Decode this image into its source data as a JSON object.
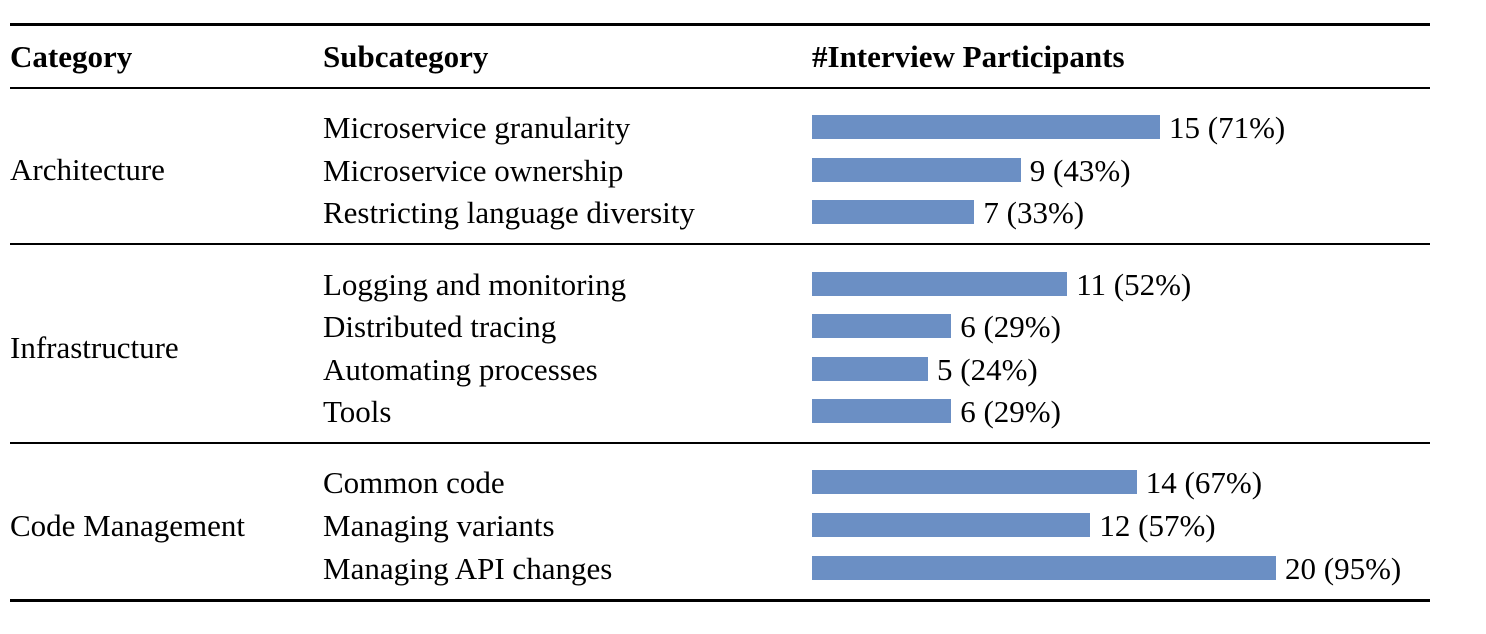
{
  "headers": {
    "category": "Category",
    "subcategory": "Subcategory",
    "participants": "#Interview Participants"
  },
  "colors": {
    "bar": "#6b8fc4"
  },
  "groups": [
    {
      "category": "Architecture",
      "rows": [
        {
          "subcategory": "Microservice granularity",
          "count": 15,
          "percent": 71,
          "label": "15 (71%)"
        },
        {
          "subcategory": "Microservice ownership",
          "count": 9,
          "percent": 43,
          "label": "9 (43%)"
        },
        {
          "subcategory": "Restricting language diversity",
          "count": 7,
          "percent": 33,
          "label": "7 (33%)"
        }
      ]
    },
    {
      "category": "Infrastructure",
      "rows": [
        {
          "subcategory": "Logging and monitoring",
          "count": 11,
          "percent": 52,
          "label": "11 (52%)"
        },
        {
          "subcategory": "Distributed tracing",
          "count": 6,
          "percent": 29,
          "label": "6 (29%)"
        },
        {
          "subcategory": "Automating processes",
          "count": 5,
          "percent": 24,
          "label": "5 (24%)"
        },
        {
          "subcategory": "Tools",
          "count": 6,
          "percent": 29,
          "label": "6 (29%)"
        }
      ]
    },
    {
      "category": "Code Management",
      "rows": [
        {
          "subcategory": "Common code",
          "count": 14,
          "percent": 67,
          "label": "14 (67%)"
        },
        {
          "subcategory": "Managing variants",
          "count": 12,
          "percent": 57,
          "label": "12 (57%)"
        },
        {
          "subcategory": "Managing API changes",
          "count": 20,
          "percent": 95,
          "label": "20 (95%)"
        }
      ]
    }
  ],
  "chart_data": {
    "type": "bar",
    "orientation": "horizontal",
    "categories": [
      "Microservice granularity",
      "Microservice ownership",
      "Restricting language diversity",
      "Logging and monitoring",
      "Distributed tracing",
      "Automating processes",
      "Tools",
      "Common code",
      "Managing variants",
      "Managing API changes"
    ],
    "values": [
      15,
      9,
      7,
      11,
      6,
      5,
      6,
      14,
      12,
      20
    ],
    "percents": [
      71,
      43,
      33,
      52,
      29,
      24,
      29,
      67,
      57,
      95
    ],
    "data_labels": [
      "15 (71%)",
      "9 (43%)",
      "7 (33%)",
      "11 (52%)",
      "6 (29%)",
      "5 (24%)",
      "6 (29%)",
      "14 (67%)",
      "12 (57%)",
      "20 (95%)"
    ],
    "title": "",
    "xlabel": "#Interview Participants",
    "ylabel": "",
    "xlim": [
      0,
      20
    ],
    "grid": false,
    "legend": "none"
  }
}
